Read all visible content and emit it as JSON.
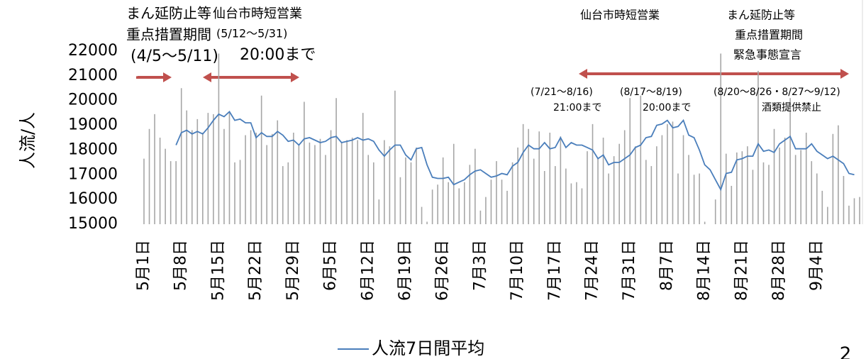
{
  "chart_data": {
    "type": "bar_line",
    "y_axis_label": "人流/人",
    "ylim": [
      15000,
      22000
    ],
    "yticks": [
      15000,
      16000,
      17000,
      18000,
      19000,
      20000,
      21000,
      22000
    ],
    "categories": [
      "5月1日",
      null,
      null,
      null,
      null,
      null,
      null,
      "5月8日",
      null,
      null,
      null,
      null,
      null,
      null,
      "5月15日",
      null,
      null,
      null,
      null,
      null,
      null,
      "5月22日",
      null,
      null,
      null,
      null,
      null,
      null,
      "5月29日",
      null,
      null,
      null,
      null,
      null,
      null,
      "6月5日",
      null,
      null,
      null,
      null,
      null,
      null,
      "6月12日",
      null,
      null,
      null,
      null,
      null,
      null,
      "6月19日",
      null,
      null,
      null,
      null,
      null,
      null,
      "6月26日",
      null,
      null,
      null,
      null,
      null,
      null,
      "7月3日",
      null,
      null,
      null,
      null,
      null,
      null,
      "7月10日",
      null,
      null,
      null,
      null,
      null,
      null,
      "7月17日",
      null,
      null,
      null,
      null,
      null,
      null,
      "7月24日",
      null,
      null,
      null,
      null,
      null,
      null,
      "7月31日",
      null,
      null,
      null,
      null,
      null,
      null,
      "8月7日",
      null,
      null,
      null,
      null,
      null,
      null,
      "8月14日",
      null,
      null,
      null,
      null,
      null,
      null,
      "8月21日",
      null,
      null,
      null,
      null,
      null,
      null,
      "8月28日",
      null,
      null,
      null,
      null,
      null,
      null,
      "9月4日",
      null,
      null,
      null,
      null,
      null,
      null,
      null,
      null
    ],
    "series": [
      {
        "kind": "bar",
        "color": "#a6a6a6",
        "values": [
          17650,
          18850,
          19450,
          18500,
          18050,
          17550,
          17550,
          20500,
          19600,
          18800,
          19250,
          18700,
          19500,
          19450,
          21900,
          18850,
          19550,
          17500,
          17600,
          18600,
          18800,
          18700,
          20200,
          18200,
          18650,
          19200,
          17350,
          17500,
          18700,
          18200,
          19950,
          18300,
          18200,
          18450,
          17800,
          18800,
          20100,
          18300,
          18400,
          18500,
          18400,
          19500,
          17800,
          17500,
          16000,
          18400,
          18150,
          20400,
          16900,
          17700,
          17500,
          18100,
          15700,
          15100,
          16400,
          16600,
          17700,
          16700,
          18250,
          16450,
          16700,
          17400,
          18050,
          15550,
          16100,
          16800,
          17550,
          16800,
          16350,
          17500,
          18100,
          19050,
          18850,
          17650,
          18750,
          17150,
          18700,
          17350,
          18550,
          17250,
          16650,
          16700,
          16450,
          17950,
          19050,
          17650,
          18500,
          17050,
          17750,
          18250,
          18800,
          20100,
          18150,
          20200,
          17600,
          17350,
          18150,
          18600,
          19050,
          19150,
          17050,
          18600,
          17800,
          17000,
          17050,
          15100,
          15000,
          16000,
          21900,
          17850,
          16550,
          17900,
          17950,
          18150,
          17200,
          21200,
          17500,
          17400,
          18850,
          18100,
          18500,
          20100,
          17800,
          18000,
          18700,
          17550,
          17050,
          16350,
          15700,
          18650,
          19000,
          16950,
          15750,
          16050,
          16100
        ]
      },
      {
        "kind": "line",
        "name": "人流7日間平均",
        "color": "#4a7ebb",
        "values": [
          null,
          null,
          null,
          null,
          null,
          null,
          18200,
          18700,
          18800,
          18650,
          18750,
          18650,
          18900,
          19200,
          19450,
          19350,
          19550,
          19200,
          19250,
          19100,
          19100,
          18500,
          18700,
          18550,
          18550,
          18750,
          18600,
          18350,
          18400,
          18200,
          18450,
          18500,
          18400,
          18300,
          18350,
          18500,
          18550,
          18300,
          18350,
          18400,
          18500,
          18400,
          18450,
          18350,
          18000,
          17750,
          18000,
          18200,
          18200,
          17800,
          17600,
          18050,
          18100,
          17400,
          16900,
          16850,
          16850,
          16900,
          16600,
          16700,
          16800,
          17000,
          17150,
          17200,
          17050,
          16900,
          16950,
          17050,
          17000,
          17350,
          17500,
          17900,
          18200,
          18050,
          18050,
          18300,
          18050,
          18100,
          18500,
          18100,
          18300,
          18200,
          18200,
          18100,
          18000,
          17650,
          17800,
          17400,
          17500,
          17500,
          17650,
          17800,
          18100,
          18200,
          18500,
          18550,
          19000,
          19050,
          19200,
          18900,
          18950,
          19200,
          18600,
          18500,
          18000,
          17400,
          17200,
          16800,
          16400,
          17050,
          17100,
          17600,
          17650,
          17750,
          17750,
          18250,
          17950,
          18000,
          17900,
          18250,
          18400,
          18550,
          18050,
          18050,
          18050,
          18250,
          17950,
          17800,
          17650,
          17750,
          17600,
          17450,
          17050,
          17000,
          null
        ]
      }
    ],
    "annotations": [
      "まん延防止等",
      "重点措置期間",
      "(4/5～5/11)",
      "仙台市時短営業",
      "(5/12～5/31)",
      "20:00まで",
      "仙台市時短営業",
      "まん延防止等",
      "重点措置期間",
      "緊急事態宣言",
      "(7/21～8/16)",
      "21:00まで",
      "(8/17～8/19)",
      "20:00まで",
      "(8/20～8/26・8/27～9/12)",
      "酒類提供禁止"
    ],
    "page_number": "2"
  }
}
